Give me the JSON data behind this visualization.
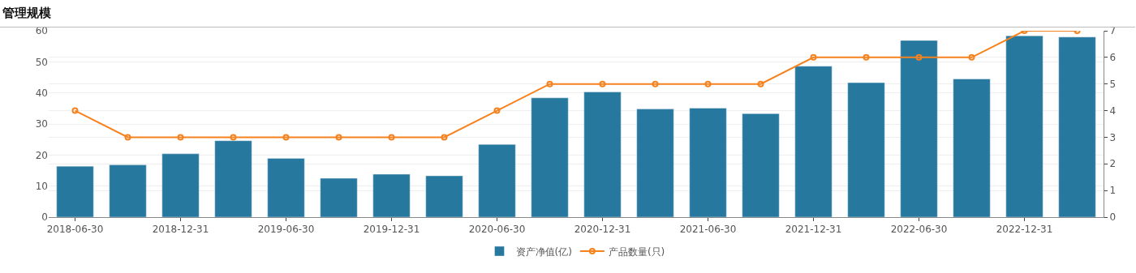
{
  "chart_data": {
    "type": "bar",
    "title": "管理规模",
    "categories": [
      "2018-06-30",
      null,
      "2018-12-31",
      null,
      "2019-06-30",
      null,
      "2019-12-31",
      null,
      "2020-06-30",
      null,
      "2020-12-31",
      null,
      "2021-06-30",
      null,
      "2021-12-31",
      null,
      "2022-06-30",
      null,
      "2022-12-31",
      null
    ],
    "series": [
      {
        "name": "资产净值(亿)",
        "color": "#26789e",
        "values": [
          16.4,
          16.8,
          20.4,
          24.6,
          18.9,
          12.5,
          13.8,
          13.3,
          23.4,
          38.4,
          40.3,
          34.8,
          35.1,
          33.3,
          48.6,
          43.3,
          56.9,
          44.5,
          58.4,
          58.0
        ]
      },
      {
        "name": "产品数量(只)",
        "color": "#f5821f",
        "type": "line",
        "axis": "y2",
        "marker": "circle",
        "values": [
          4,
          3,
          3,
          3,
          3,
          3,
          3,
          3,
          4,
          5,
          5,
          5,
          5,
          5,
          6,
          6,
          6,
          6,
          7,
          7
        ]
      }
    ],
    "ylim": [
      0,
      60
    ],
    "yticks": [
      0,
      10,
      20,
      30,
      40,
      50,
      60
    ],
    "y2lim": [
      0,
      7
    ],
    "y2ticks": [
      0,
      1,
      2,
      3,
      4,
      5,
      6,
      7
    ],
    "grid": "y",
    "legend": "bottom"
  }
}
